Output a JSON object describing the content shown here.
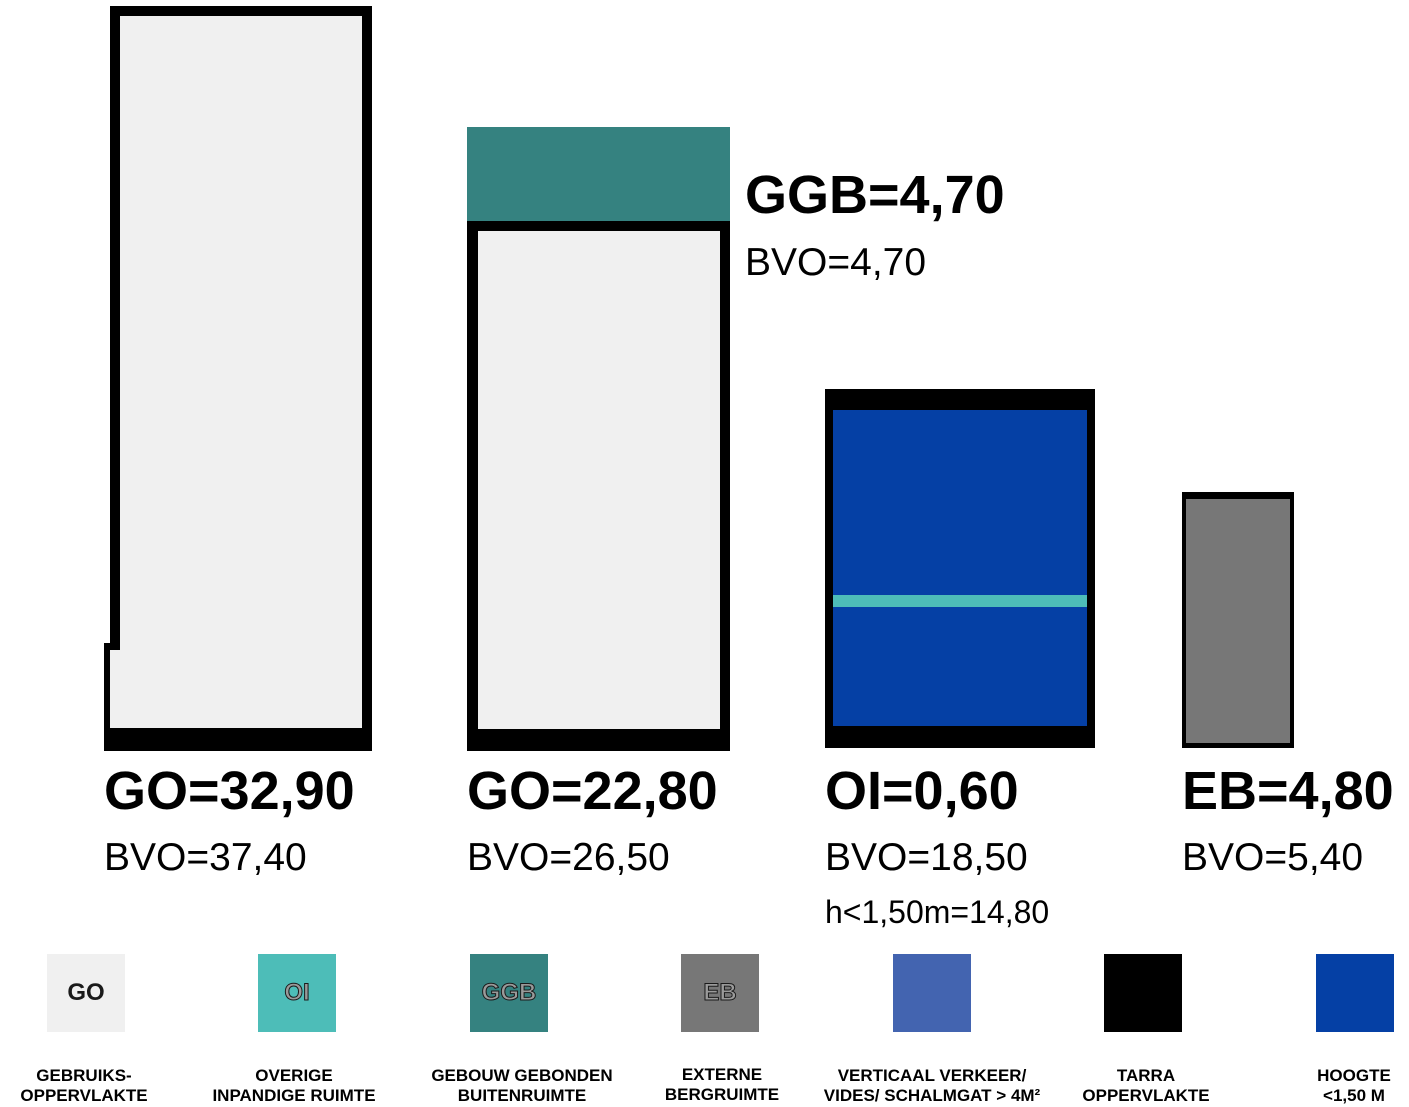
{
  "colors": {
    "go": "#f0f0f0",
    "oi": "#4dbdb8",
    "ggb": "#358280",
    "eb": "#777777",
    "vv": "#4364b0",
    "tarra": "#000000",
    "hoogte": "#0540a5"
  },
  "blocks": [
    {
      "main": "GO=32,90",
      "sub": "BVO=37,40"
    },
    {
      "main": "GO=22,80",
      "sub": "BVO=26,50",
      "top_main": "GGB=4,70",
      "top_sub": "BVO=4,70"
    },
    {
      "main": "OI=0,60",
      "sub": "BVO=18,50",
      "sub2": "h<1,50m=14,80"
    },
    {
      "main": "EB=4,80",
      "sub": "BVO=5,40"
    }
  ],
  "legend": [
    {
      "code": "GO",
      "icon": "light-gray-swatch",
      "line1": "GEBRUIKS-",
      "line2": "OPPERVLAKTE"
    },
    {
      "code": "OI",
      "icon": "teal-swatch",
      "line1": "OVERIGE",
      "line2": "INPANDIGE RUIMTE"
    },
    {
      "code": "GGB",
      "icon": "dark-teal-swatch",
      "line1": "GEBOUW GEBONDEN",
      "line2": "BUITENRUIMTE"
    },
    {
      "code": "EB",
      "icon": "gray-swatch",
      "line1": "EXTERNE",
      "line2": "BERGRUIMTE"
    },
    {
      "code": "",
      "icon": "medium-blue-swatch",
      "line1": "VERTICAAL VERKEER/",
      "line2": "VIDES/ SCHALMGAT > 4M²"
    },
    {
      "code": "",
      "icon": "black-swatch",
      "line1": "TARRA",
      "line2": "OPPERVLAKTE"
    },
    {
      "code": "",
      "icon": "dark-blue-swatch",
      "line1": "HOOGTE",
      "line2": "<1,50 M"
    }
  ]
}
